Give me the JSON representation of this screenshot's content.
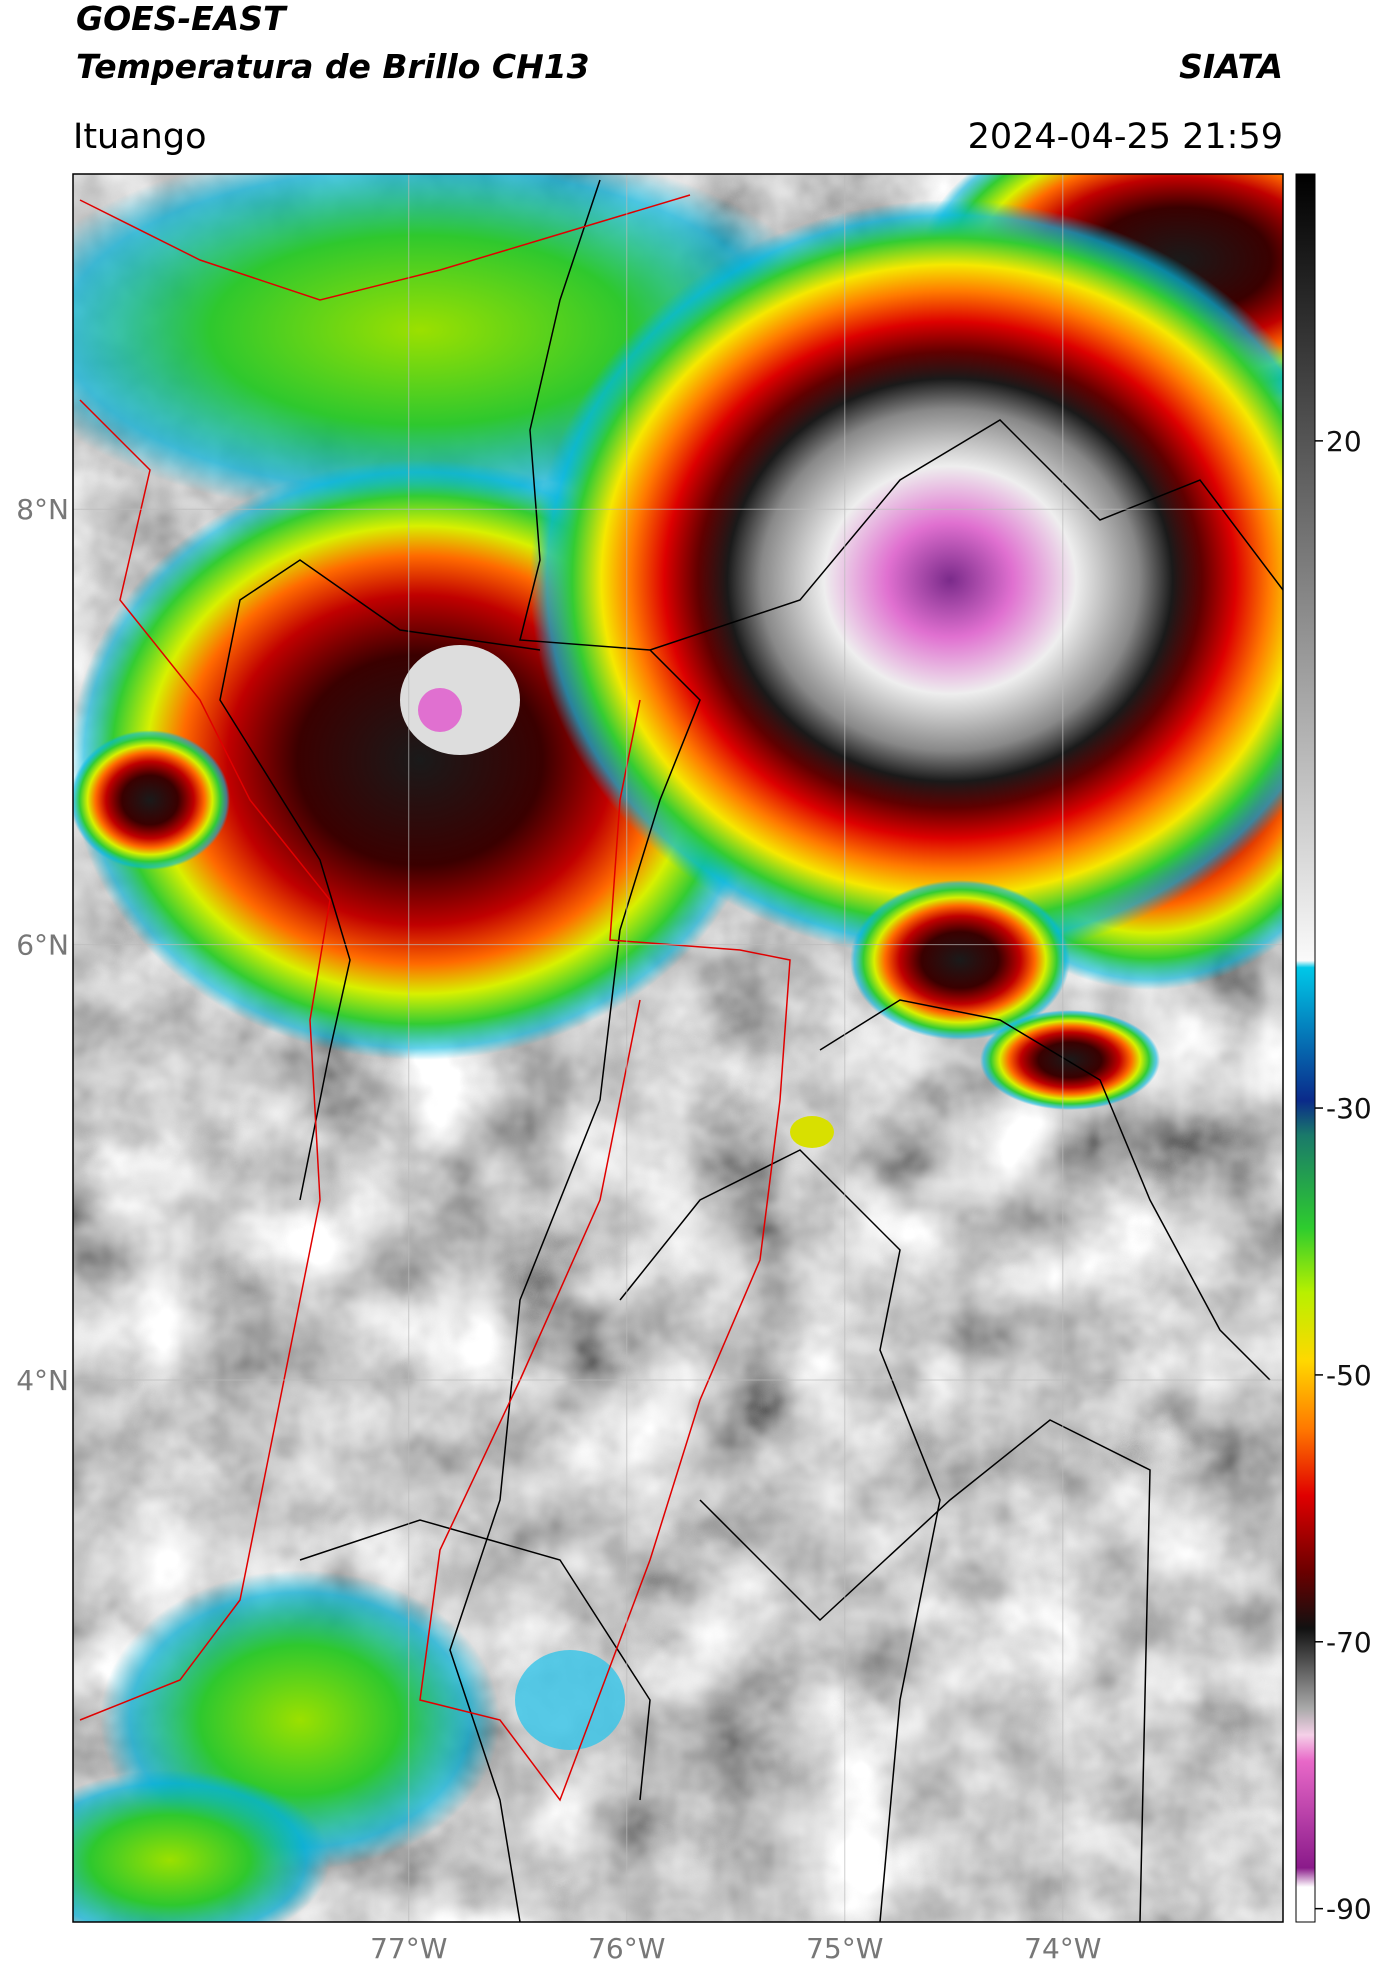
{
  "header": {
    "title": "GOES-EAST",
    "subtitle": "Temperatura de Brillo CH13",
    "org": "SIATA",
    "place": "Ituango",
    "datetime": "2024-04-25 21:59"
  },
  "map": {
    "lat_lim": [
      1.51,
      9.54
    ],
    "lon_lim": [
      -78.54,
      -72.99
    ],
    "lat_ticks": [
      {
        "value": 8,
        "label": "8°N"
      },
      {
        "value": 6,
        "label": "6°N"
      },
      {
        "value": 4,
        "label": "4°N"
      }
    ],
    "lon_ticks": [
      {
        "value": -77,
        "label": "77°W"
      },
      {
        "value": -76,
        "label": "76°W"
      },
      {
        "value": -75,
        "label": "75°W"
      },
      {
        "value": -74,
        "label": "74°W"
      }
    ]
  },
  "colorbar": {
    "lim": [
      -91,
      40
    ],
    "ticks": [
      20,
      -30,
      -50,
      -70,
      -90
    ]
  }
}
